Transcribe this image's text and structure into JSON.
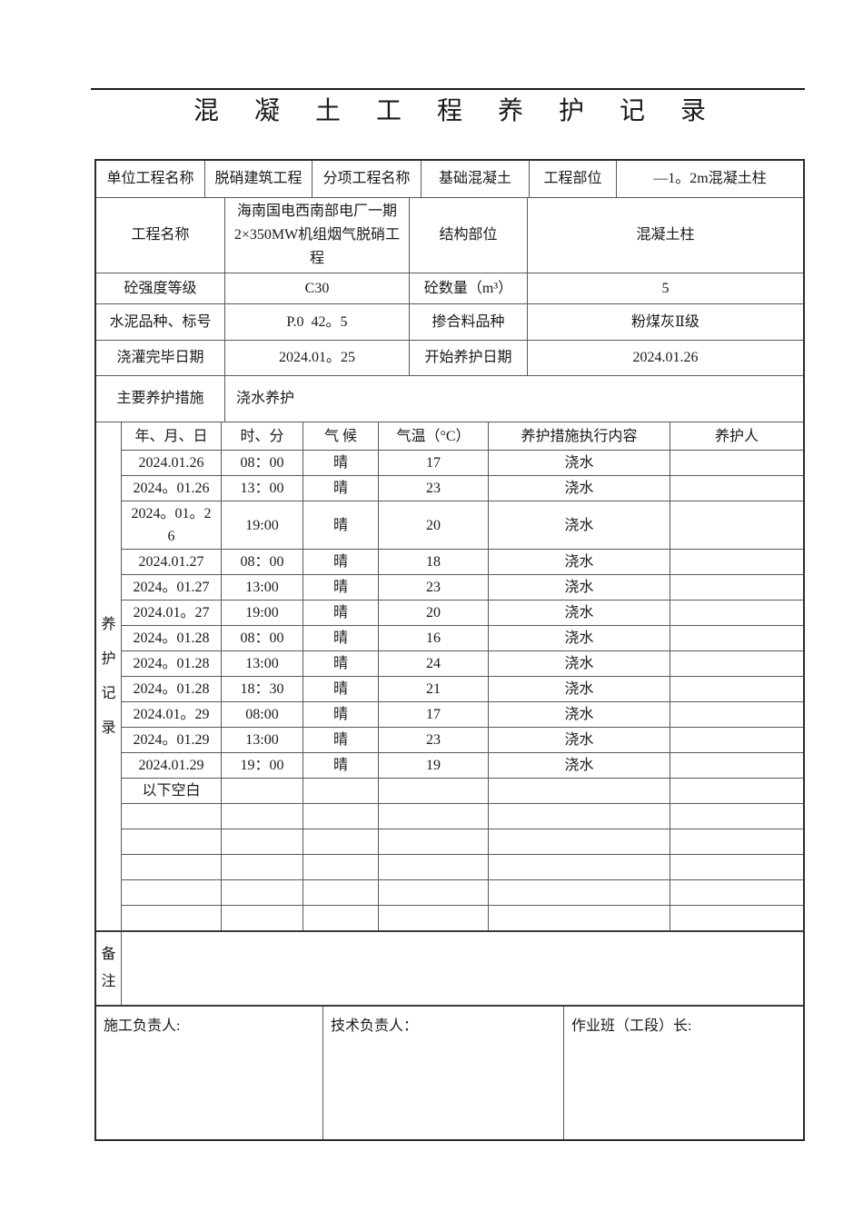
{
  "title": "混 凝 土 工 程 养 护 记 录",
  "info": {
    "r1c1": "单位工程名称",
    "r1v1": "脱硝建筑工程",
    "r1c2": "分项工程名称",
    "r1v2": "基础混凝土",
    "r1c3": "工程部位",
    "r1v3": "—1。2m混凝土柱",
    "r2c1": "工程名称",
    "r2v1": "海南国电西南部电厂一期2×350MW机组烟气脱硝工程",
    "r2c2": "结构部位",
    "r2v2": "混凝土柱",
    "r3c1": "砼强度等级",
    "r3v1": "C30",
    "r3c2": "砼数量（m³）",
    "r3v2": "5",
    "r4c1": "水泥品种、标号",
    "r4v1": "P.0  42。5",
    "r4c2": "掺合料品种",
    "r4v2": "粉煤灰Ⅱ级",
    "r5c1": "浇灌完毕日期",
    "r5v1": "2024.01。25",
    "r5c2": "开始养护日期",
    "r5v2": "2024.01.26",
    "r6c1": "主要养护措施",
    "r6v1": "浇水养护"
  },
  "record": {
    "side_label": "养护记录",
    "headers": [
      "年、月、日",
      "时、分",
      "气 候",
      "气温（°C）",
      "养护措施执行内容",
      "养护人"
    ],
    "rows": [
      {
        "date": "2024.01.26",
        "date2": "",
        "time": "08：00",
        "weather": "晴",
        "temp": "17",
        "content": "浇水",
        "person": ""
      },
      {
        "date": "2024。01.26",
        "date2": "",
        "time": "13：00",
        "weather": "晴",
        "temp": "23",
        "content": "浇水",
        "person": ""
      },
      {
        "date": "2024。01。2",
        "date2": "6",
        "time": "19:00",
        "weather": "晴",
        "temp": "20",
        "content": "浇水",
        "person": ""
      },
      {
        "date": "2024.01.27",
        "date2": "",
        "time": "08：00",
        "weather": "晴",
        "temp": "18",
        "content": "浇水",
        "person": ""
      },
      {
        "date": "2024。01.27",
        "date2": "",
        "time": "13:00",
        "weather": "晴",
        "temp": "23",
        "content": "浇水",
        "person": ""
      },
      {
        "date": "2024.01。27",
        "date2": "",
        "time": "19:00",
        "weather": "晴",
        "temp": "20",
        "content": "浇水",
        "person": ""
      },
      {
        "date": "2024。01.28",
        "date2": "",
        "time": "08：00",
        "weather": "晴",
        "temp": "16",
        "content": "浇水",
        "person": ""
      },
      {
        "date": "2024。01.28",
        "date2": "",
        "time": "13:00",
        "weather": "晴",
        "temp": "24",
        "content": "浇水",
        "person": ""
      },
      {
        "date": "2024。01.28",
        "date2": "",
        "time": "18：30",
        "weather": "晴",
        "temp": "21",
        "content": "浇水",
        "person": ""
      },
      {
        "date": "2024.01。29",
        "date2": "",
        "time": "08:00",
        "weather": "晴",
        "temp": "17",
        "content": "浇水",
        "person": ""
      },
      {
        "date": "2024。01.29",
        "date2": "",
        "time": "13:00",
        "weather": "晴",
        "temp": "23",
        "content": "浇水",
        "person": ""
      },
      {
        "date": "2024.01.29",
        "date2": "",
        "time": "19：00",
        "weather": "晴",
        "temp": "19",
        "content": "浇水",
        "person": ""
      },
      {
        "date": "以下空白",
        "date2": "",
        "time": "",
        "weather": "",
        "temp": "",
        "content": "",
        "person": ""
      },
      {
        "date": "",
        "date2": "",
        "time": "",
        "weather": "",
        "temp": "",
        "content": "",
        "person": ""
      },
      {
        "date": "",
        "date2": "",
        "time": "",
        "weather": "",
        "temp": "",
        "content": "",
        "person": ""
      },
      {
        "date": "",
        "date2": "",
        "time": "",
        "weather": "",
        "temp": "",
        "content": "",
        "person": ""
      },
      {
        "date": "",
        "date2": "",
        "time": "",
        "weather": "",
        "temp": "",
        "content": "",
        "person": ""
      },
      {
        "date": "",
        "date2": "",
        "time": "",
        "weather": "",
        "temp": "",
        "content": "",
        "person": ""
      }
    ]
  },
  "notes": {
    "label": "备注",
    "content": ""
  },
  "footer": {
    "c1": "施工负责人:",
    "c2": "技术负责人：",
    "c3": "作业班（工段）长:"
  }
}
